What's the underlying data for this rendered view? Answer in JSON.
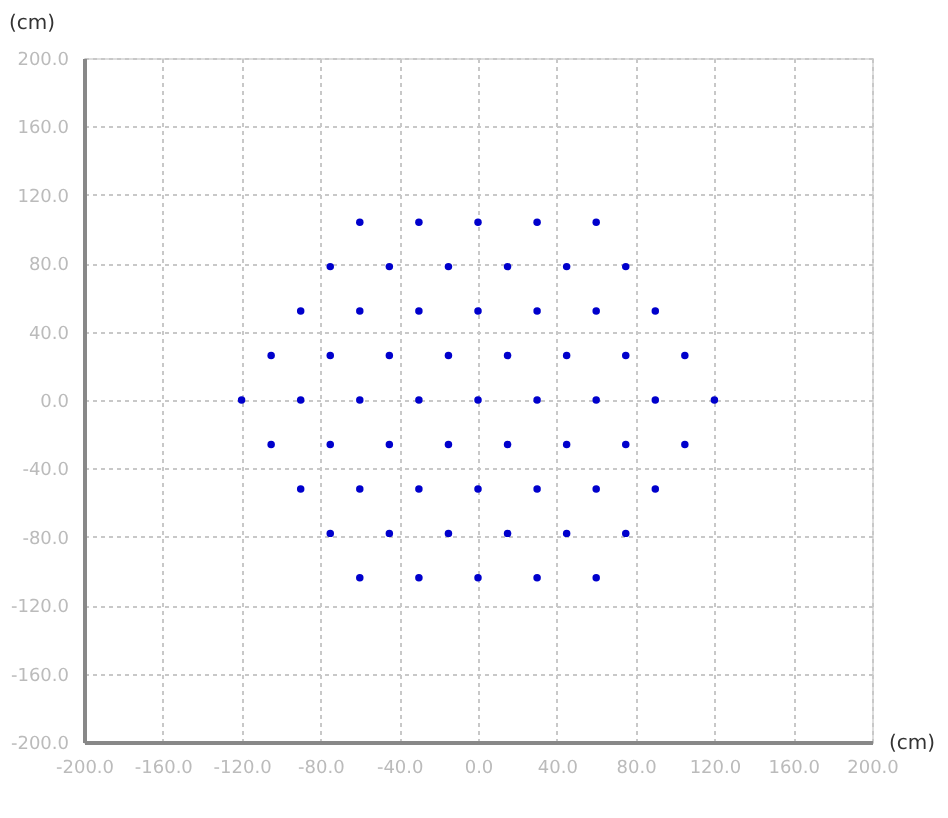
{
  "chart_data": {
    "type": "scatter",
    "xlabel": "(cm)",
    "ylabel": "(cm)",
    "xlim": [
      -200,
      200
    ],
    "ylim": [
      -200,
      200
    ],
    "xticks": [
      {
        "value": -200,
        "label": "-200.0"
      },
      {
        "value": -160,
        "label": "-160.0"
      },
      {
        "value": -120,
        "label": "-120.0"
      },
      {
        "value": -80,
        "label": "-80.0"
      },
      {
        "value": -40,
        "label": "-40.0"
      },
      {
        "value": 0,
        "label": "0.0"
      },
      {
        "value": 40,
        "label": "40.0"
      },
      {
        "value": 80,
        "label": "80.0"
      },
      {
        "value": 120,
        "label": "120.0"
      },
      {
        "value": 160,
        "label": "160.0"
      },
      {
        "value": 200,
        "label": "200.0"
      }
    ],
    "yticks": [
      {
        "value": -200,
        "label": "-200.0"
      },
      {
        "value": -160,
        "label": "-160.0"
      },
      {
        "value": -120,
        "label": "-120.0"
      },
      {
        "value": -80,
        "label": "-80.0"
      },
      {
        "value": -40,
        "label": "-40.0"
      },
      {
        "value": 0,
        "label": "0.0"
      },
      {
        "value": 40,
        "label": "40.0"
      },
      {
        "value": 80,
        "label": "80.0"
      },
      {
        "value": 120,
        "label": "120.0"
      },
      {
        "value": 160,
        "label": "160.0"
      },
      {
        "value": 200,
        "label": "200.0"
      }
    ],
    "grid": true,
    "legend": false,
    "marker": "circle",
    "series": [
      {
        "color": "#0000cc",
        "x": [
          -60,
          -30,
          0,
          30,
          60,
          -75,
          -45,
          -15,
          15,
          45,
          75,
          -90,
          -60,
          -30,
          0,
          30,
          60,
          90,
          -105,
          -75,
          -45,
          -15,
          15,
          45,
          75,
          105,
          -120,
          -90,
          -60,
          -30,
          0,
          30,
          60,
          90,
          120,
          -105,
          -75,
          -45,
          -15,
          15,
          45,
          75,
          105,
          -90,
          -60,
          -30,
          0,
          30,
          60,
          90,
          -75,
          -45,
          -15,
          15,
          45,
          75,
          -60,
          -30,
          0,
          30,
          60
        ],
        "values": [
          104,
          104,
          104,
          104,
          104,
          78,
          78,
          78,
          78,
          78,
          78,
          52,
          52,
          52,
          52,
          52,
          52,
          52,
          26,
          26,
          26,
          26,
          26,
          26,
          26,
          26,
          0,
          0,
          0,
          0,
          0,
          0,
          0,
          0,
          0,
          -26,
          -26,
          -26,
          -26,
          -26,
          -26,
          -26,
          -26,
          -52,
          -52,
          -52,
          -52,
          -52,
          -52,
          -52,
          -78,
          -78,
          -78,
          -78,
          -78,
          -78,
          -104,
          -104,
          -104,
          -104,
          -104
        ]
      }
    ]
  }
}
